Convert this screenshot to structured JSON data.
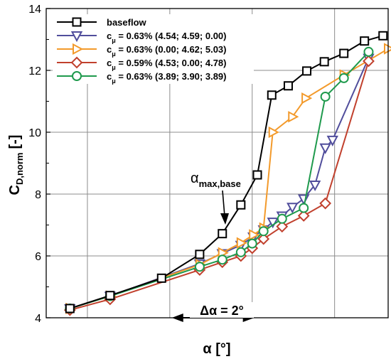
{
  "chart_data": {
    "type": "line",
    "xlabel": "α [°]",
    "ylabel_main": "C",
    "ylabel_sub": "D,norm",
    "ylabel_unit": "[-]",
    "ylim": [
      4,
      14
    ],
    "yticks": [
      "4",
      "6",
      "8",
      "10",
      "12",
      "14"
    ],
    "xlim": [
      0,
      16.6
    ],
    "x_grid": [
      0,
      2,
      6,
      10,
      14,
      16.6
    ],
    "grid": true,
    "legend_position": "top-left",
    "annotations": {
      "alpha_max_base": "α",
      "alpha_max_base_sub": "max,base",
      "delta_alpha": "Δα = 2°",
      "delta_alpha_span": [
        6.1,
        10.1
      ]
    },
    "series": [
      {
        "name": "baseflow",
        "cmu_text": "",
        "color": "#000000",
        "marker": "square",
        "points": [
          [
            1.15,
            4.3
          ],
          [
            3.1,
            4.72
          ],
          [
            5.6,
            5.28
          ],
          [
            7.45,
            6.05
          ],
          [
            8.55,
            6.72
          ],
          [
            9.45,
            7.65
          ],
          [
            10.25,
            8.62
          ],
          [
            10.95,
            11.2
          ],
          [
            11.75,
            11.5
          ],
          [
            12.65,
            11.98
          ],
          [
            13.5,
            12.28
          ],
          [
            14.45,
            12.55
          ],
          [
            15.45,
            12.95
          ],
          [
            16.35,
            13.12
          ]
        ]
      },
      {
        "name": "0.63% (4.54; 4.59; 0.00)",
        "cmu_text": "c",
        "color": "#514e9c",
        "marker": "triangle-down",
        "points": [
          [
            1.15,
            4.3
          ],
          [
            3.1,
            4.7
          ],
          [
            7.45,
            5.75
          ],
          [
            8.55,
            6.08
          ],
          [
            9.45,
            6.35
          ],
          [
            10.05,
            6.62
          ],
          [
            10.55,
            6.85
          ],
          [
            11.0,
            7.1
          ],
          [
            11.45,
            7.3
          ],
          [
            11.95,
            7.58
          ],
          [
            12.5,
            7.85
          ],
          [
            13.05,
            8.3
          ],
          [
            13.55,
            9.5
          ],
          [
            13.9,
            9.75
          ],
          [
            15.65,
            12.4
          ]
        ]
      },
      {
        "name": "0.63% (0.00; 4.62; 5.03)",
        "cmu_text": "c",
        "color": "#f39a2b",
        "marker": "triangle-right",
        "points": [
          [
            1.15,
            4.3
          ],
          [
            3.1,
            4.7
          ],
          [
            7.45,
            5.72
          ],
          [
            8.55,
            6.1
          ],
          [
            9.45,
            6.42
          ],
          [
            10.05,
            6.68
          ],
          [
            10.55,
            6.9
          ],
          [
            11.0,
            10.0
          ],
          [
            11.95,
            10.5
          ],
          [
            12.6,
            11.1
          ],
          [
            14.45,
            11.85
          ],
          [
            16.6,
            12.7
          ]
        ]
      },
      {
        "name": "0.59% (4.53; 0.00; 4.78)",
        "cmu_text": "c",
        "color": "#c1402d",
        "marker": "diamond",
        "points": [
          [
            1.15,
            4.25
          ],
          [
            3.1,
            4.6
          ],
          [
            7.45,
            5.55
          ],
          [
            8.55,
            5.8
          ],
          [
            9.45,
            6.0
          ],
          [
            10.0,
            6.25
          ],
          [
            10.55,
            6.55
          ],
          [
            11.45,
            6.95
          ],
          [
            12.5,
            7.3
          ],
          [
            13.55,
            7.7
          ],
          [
            15.65,
            12.3
          ]
        ]
      },
      {
        "name": "0.63% (3.89; 3.90; 3.89)",
        "cmu_text": "c",
        "color": "#1f9a4d",
        "marker": "circle",
        "points": [
          [
            1.15,
            4.3
          ],
          [
            3.1,
            4.7
          ],
          [
            7.45,
            5.65
          ],
          [
            8.55,
            5.88
          ],
          [
            9.45,
            6.12
          ],
          [
            10.0,
            6.4
          ],
          [
            10.55,
            6.8
          ],
          [
            11.45,
            7.2
          ],
          [
            12.5,
            7.55
          ],
          [
            13.55,
            11.15
          ],
          [
            14.45,
            11.75
          ],
          [
            15.65,
            12.6
          ]
        ]
      }
    ]
  }
}
